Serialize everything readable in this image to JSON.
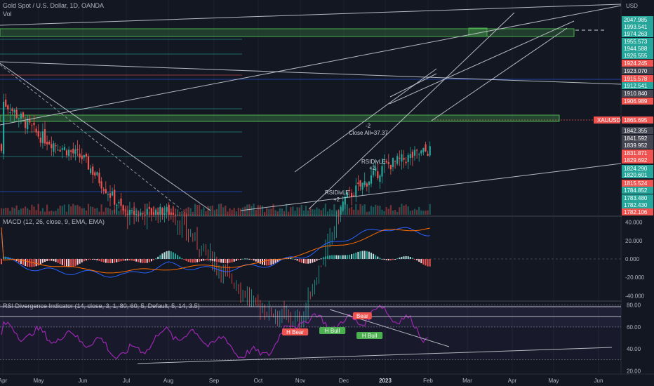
{
  "header": {
    "title": "Gold Spot / U.S. Dollar, 1D, OANDA",
    "volume_label": "Vol",
    "currency": "USD"
  },
  "colors": {
    "background": "#131722",
    "up": "#26a69a",
    "down": "#ef5350",
    "macd_line": "#2962ff",
    "signal_line": "#ff6d00",
    "rsi_line": "#9c27b0",
    "zone": "#4caf50",
    "trendline": "#d1d4dc"
  },
  "price_panel": {
    "y_range": [
      1781,
      2058
    ],
    "price_labels": [
      {
        "value": "2047.985",
        "color": "#26a69a"
      },
      {
        "value": "1993.541",
        "color": "#26a69a"
      },
      {
        "value": "1974.263",
        "color": "#26a69a"
      },
      {
        "value": "1955.573",
        "color": "#26a69a"
      },
      {
        "value": "1944.588",
        "color": "#26a69a"
      },
      {
        "value": "1926.555",
        "color": "#26a69a"
      },
      {
        "value": "1924.245",
        "color": "#ef5350"
      },
      {
        "value": "1923.070",
        "color": "#434651"
      },
      {
        "value": "1915.578",
        "color": "#ef5350"
      },
      {
        "value": "1912.541",
        "color": "#26a69a"
      },
      {
        "value": "1910.840",
        "color": "#434651"
      },
      {
        "value": "1906.989",
        "color": "#ef5350"
      },
      {
        "value": "1865.695",
        "color": "#ef5350"
      },
      {
        "value": "1842.355",
        "color": "#434651"
      },
      {
        "value": "1841.592",
        "color": "#434651"
      },
      {
        "value": "1839.952",
        "color": "#434651"
      },
      {
        "value": "1831.871",
        "color": "#ef5350"
      },
      {
        "value": "1829.692",
        "color": "#ef5350"
      },
      {
        "value": "1824.290",
        "color": "#26a69a"
      },
      {
        "value": "1820.601",
        "color": "#26a69a"
      },
      {
        "value": "1815.524",
        "color": "#ef5350"
      },
      {
        "value": "1784.852",
        "color": "#26a69a"
      },
      {
        "value": "1783.480",
        "color": "#26a69a"
      },
      {
        "value": "1782.430",
        "color": "#26a69a"
      },
      {
        "value": "1782.106",
        "color": "#ef5350"
      }
    ],
    "symbol_tag": "XAUUSD",
    "annotations": {
      "close_all": "Close All=37.37",
      "minus2": "-2",
      "rsidivle_1": "RSIDivLE",
      "plus2_1": "+2",
      "rsidivle_2": "RSIDivLE",
      "plus2_2": "+2"
    }
  },
  "macd_panel": {
    "legend": "MACD (12, 26, close, 9, EMA, EMA)",
    "y_range": [
      -45,
      45
    ],
    "ticks": [
      "40.000",
      "20.000",
      "0.000",
      "-20.000",
      "-40.000"
    ]
  },
  "rsi_panel": {
    "legend": "RSI Divergence Indicator (14, close, 3, 1, 80, 60, 5, Default, 5, 14, 3.5)",
    "y_range": [
      17,
      83
    ],
    "ticks": [
      "80.00",
      "60.00",
      "40.00",
      "20.00"
    ],
    "labels": {
      "h_bear": "H Bear",
      "bear": "Bear",
      "h_bull_1": "H Bull",
      "h_bull_2": "H Bull"
    }
  },
  "time_axis": [
    "Apr",
    "May",
    "Jun",
    "Jul",
    "Aug",
    "Sep",
    "Oct",
    "Nov",
    "Dec",
    "2023",
    "Feb",
    "Mar",
    "Apr",
    "May",
    "Jun"
  ],
  "chart_data": [
    {
      "type": "candlestick",
      "title": "Gold Spot / U.S. Dollar, 1D, OANDA",
      "x": [
        "Apr",
        "May",
        "Jun",
        "Jul",
        "Aug",
        "Sep",
        "Oct",
        "Nov",
        "Dec",
        "2023",
        "Feb"
      ],
      "close_path": [
        [
          "Apr",
          1930
        ],
        [
          "May",
          1885
        ],
        [
          "Jun",
          1855
        ],
        [
          "Jul",
          1780
        ],
        [
          "Aug",
          1785
        ],
        [
          "Sep",
          1720
        ],
        [
          "Oct",
          1660
        ],
        [
          "Nov",
          1640
        ],
        [
          "Dec",
          1800
        ],
        [
          "2023",
          1845
        ],
        [
          "Feb",
          1865
        ]
      ],
      "last_close": 1865.695
    },
    {
      "type": "bar",
      "title": "MACD (12, 26, close, 9, EMA, EMA)",
      "x": [
        "Apr",
        "May",
        "Jun",
        "Jul",
        "Aug",
        "Sep",
        "Oct",
        "Nov",
        "Dec",
        "2023",
        "Feb"
      ],
      "series": [
        {
          "name": "MACD",
          "values": [
            0,
            -12,
            -15,
            -18,
            -6,
            -12,
            -8,
            2,
            22,
            34,
            28
          ]
        },
        {
          "name": "Signal",
          "values": [
            -2,
            -4,
            -12,
            -14,
            -10,
            -8,
            -6,
            6,
            16,
            30,
            34
          ]
        }
      ],
      "ylim": [
        -40,
        40
      ]
    },
    {
      "type": "line",
      "title": "RSI Divergence Indicator (14, close, 3, 1, 80, 60, 5, Default, 5, 14, 3.5)",
      "x": [
        "Apr",
        "May",
        "Jun",
        "Jul",
        "Aug",
        "Sep",
        "Oct",
        "Nov",
        "Dec",
        "2023",
        "Feb"
      ],
      "series": [
        {
          "name": "RSI",
          "values": [
            58,
            52,
            50,
            34,
            55,
            48,
            32,
            68,
            62,
            76,
            52
          ]
        }
      ],
      "ylim": [
        20,
        80
      ]
    }
  ]
}
